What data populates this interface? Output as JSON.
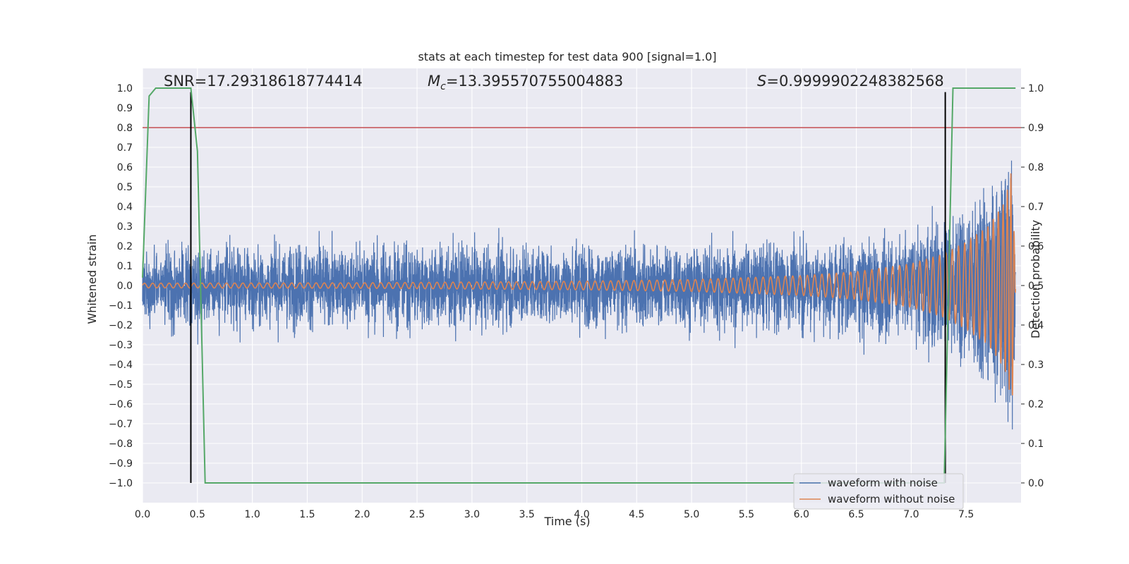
{
  "chart_data": {
    "type": "line",
    "title": "stats at each timestep for test data 900 [signal=1.0]",
    "xlabel": "Time (s)",
    "ylabel_left": "Whitened strain",
    "ylabel_right": "Detection probability",
    "xlim": [
      0.0,
      8.0
    ],
    "ylim_left": [
      -1.1,
      1.1
    ],
    "ylim_right": [
      -0.05,
      1.05
    ],
    "xticks": [
      "0.0",
      "0.5",
      "1.0",
      "1.5",
      "2.0",
      "2.5",
      "3.0",
      "3.5",
      "4.0",
      "4.5",
      "5.0",
      "5.5",
      "6.0",
      "6.5",
      "7.0",
      "7.5"
    ],
    "xtick_values": [
      0.0,
      0.5,
      1.0,
      1.5,
      2.0,
      2.5,
      3.0,
      3.5,
      4.0,
      4.5,
      5.0,
      5.5,
      6.0,
      6.5,
      7.0,
      7.5
    ],
    "yticks_left": [
      "1.0",
      "0.9",
      "0.8",
      "0.7",
      "0.6",
      "0.5",
      "0.4",
      "0.3",
      "0.2",
      "0.1",
      "0.0",
      "−0.1",
      "−0.2",
      "−0.3",
      "−0.4",
      "−0.5",
      "−0.6",
      "−0.7",
      "−0.8",
      "−0.9",
      "−1.0"
    ],
    "ytick_values_left": [
      1.0,
      0.9,
      0.8,
      0.7,
      0.6,
      0.5,
      0.4,
      0.3,
      0.2,
      0.1,
      0.0,
      -0.1,
      -0.2,
      -0.3,
      -0.4,
      -0.5,
      -0.6,
      -0.7,
      -0.8,
      -0.9,
      -1.0
    ],
    "yticks_right": [
      "1.0",
      "0.9",
      "0.8",
      "0.7",
      "0.6",
      "0.5",
      "0.4",
      "0.3",
      "0.2",
      "0.1",
      "0.0"
    ],
    "ytick_values_right": [
      1.0,
      0.9,
      0.8,
      0.7,
      0.6,
      0.5,
      0.4,
      0.3,
      0.2,
      0.1,
      0.0
    ],
    "annotations": {
      "snr": "SNR=17.29318618774414",
      "mc_symbol": "M",
      "mc_sub": "c",
      "mc_value": "=13.395570755004883",
      "s_symbol": "S",
      "s_value": "=0.9999902248382568"
    },
    "threshold_right": 0.9,
    "vlines_x": [
      0.44,
      7.31
    ],
    "vline_ymin": -1.0,
    "vline_ymax": 0.98,
    "detection_probability": {
      "x": [
        0.0,
        0.06,
        0.12,
        0.44,
        0.5,
        0.57,
        7.3,
        7.38,
        7.95
      ],
      "y": [
        0.52,
        0.98,
        1.0,
        1.0,
        0.84,
        0.0,
        0.0,
        1.0,
        1.0
      ]
    },
    "noisy_envelope": {
      "x": [
        0.0,
        1.0,
        2.0,
        3.0,
        4.0,
        5.0,
        6.0,
        6.5,
        7.0,
        7.3,
        7.6,
        7.85,
        7.95
      ],
      "y": [
        0.26,
        0.26,
        0.26,
        0.26,
        0.26,
        0.26,
        0.26,
        0.27,
        0.28,
        0.31,
        0.36,
        0.45,
        0.32
      ]
    },
    "clean_envelope": {
      "x": [
        0.0,
        2.0,
        4.0,
        5.0,
        6.0,
        6.5,
        7.0,
        7.3,
        7.5,
        7.7,
        7.85,
        7.92,
        7.95
      ],
      "y": [
        0.012,
        0.014,
        0.022,
        0.03,
        0.05,
        0.07,
        0.11,
        0.16,
        0.22,
        0.3,
        0.42,
        0.6,
        0.02
      ]
    },
    "clean_chirp": {
      "cycles_start": 88,
      "cycles_end": 60,
      "t_merge": 7.92
    },
    "series": [
      {
        "name": "waveform with noise",
        "color": "#4c72b0"
      },
      {
        "name": "waveform without noise",
        "color": "#dd8452"
      }
    ],
    "colors": {
      "detection": "#55a868",
      "threshold": "#c44e52",
      "vline": "#000000",
      "plot_bg": "#eaeaf2",
      "grid": "#ffffff"
    }
  }
}
